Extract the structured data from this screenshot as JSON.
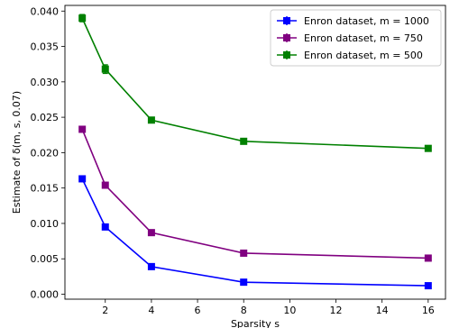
{
  "chart_data": {
    "type": "line",
    "xlabel": "Sparsity s",
    "ylabel": "Estimate of δ(m, s, 0.07)",
    "xlim": [
      0.25,
      16.75
    ],
    "ylim": [
      -0.0007,
      0.0408
    ],
    "x_ticks": [
      2,
      4,
      6,
      8,
      10,
      12,
      14,
      16
    ],
    "x_tick_labels": [
      "2",
      "4",
      "6",
      "8",
      "10",
      "12",
      "14",
      "16"
    ],
    "y_ticks": [
      0.0,
      0.005,
      0.01,
      0.015,
      0.02,
      0.025,
      0.03,
      0.035,
      0.04
    ],
    "y_tick_labels": [
      "0.000",
      "0.005",
      "0.010",
      "0.015",
      "0.020",
      "0.025",
      "0.030",
      "0.035",
      "0.040"
    ],
    "grid": false,
    "legend_position": "top-right",
    "x": [
      1,
      2,
      4,
      8,
      16
    ],
    "series": [
      {
        "name": "Enron dataset, m = 1000",
        "color": "#0000ff",
        "values": [
          0.0163,
          0.0095,
          0.0039,
          0.0017,
          0.0012
        ],
        "error": [
          0.0002,
          0.0002,
          0.0001,
          0.0001,
          0.0001
        ]
      },
      {
        "name": "Enron dataset, m = 750",
        "color": "#800080",
        "values": [
          0.0233,
          0.0154,
          0.0087,
          0.0058,
          0.0051
        ],
        "error": [
          0.0002,
          0.0002,
          0.0001,
          0.0001,
          0.0001
        ]
      },
      {
        "name": "Enron dataset, m = 500",
        "color": "#008000",
        "values": [
          0.039,
          0.0318,
          0.0246,
          0.0216,
          0.0206
        ],
        "error": [
          0.0005,
          0.0006,
          0.0002,
          0.0002,
          0.0002
        ]
      }
    ]
  }
}
